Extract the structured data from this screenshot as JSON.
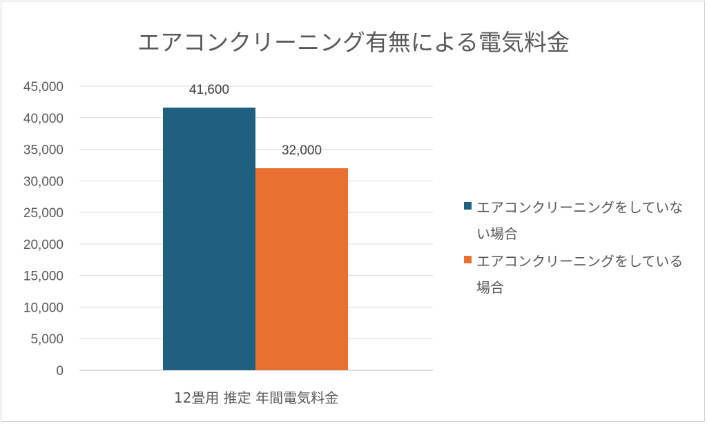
{
  "chart_data": {
    "type": "bar",
    "title": "エアコンクリーニング有無による電気料金",
    "categories": [
      "12畳用 推定 年間電気料金"
    ],
    "series": [
      {
        "name": "エアコンクリーニングをしていない場合",
        "values": [
          41600
        ],
        "color": "#1f5f7f"
      },
      {
        "name": "エアコンクリーニングをしている場合",
        "values": [
          32000
        ],
        "color": "#e97132"
      }
    ],
    "data_labels": [
      "41,600",
      "32,000"
    ],
    "yticks": [
      "0",
      "5,000",
      "10,000",
      "15,000",
      "20,000",
      "25,000",
      "30,000",
      "35,000",
      "40,000",
      "45,000"
    ],
    "ylim": [
      0,
      45000
    ],
    "grid": true,
    "legend_position": "right",
    "xlabel": "",
    "ylabel": ""
  }
}
